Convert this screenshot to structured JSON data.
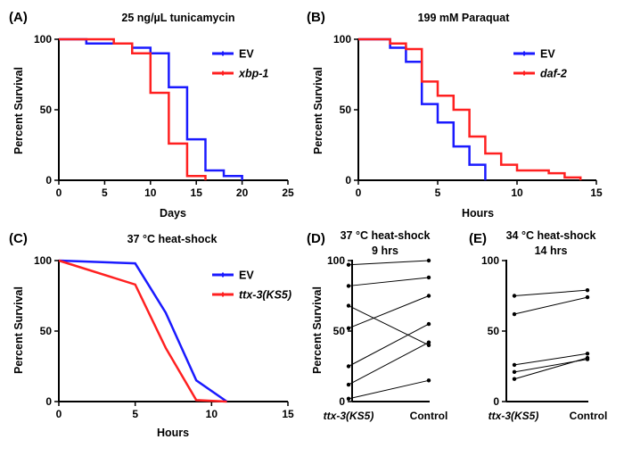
{
  "chart_data": [
    {
      "panel": "(A)",
      "type": "line",
      "title": "25 ng/µL tunicamycin",
      "xlabel": "Days",
      "ylabel": "Percent Survival",
      "xlim": [
        0,
        25
      ],
      "ylim": [
        0,
        100
      ],
      "xticks": [
        0,
        5,
        10,
        15,
        20,
        25
      ],
      "yticks": [
        0,
        50,
        100
      ],
      "step": true,
      "legend": "right",
      "series": [
        {
          "name": "EV",
          "italic": false,
          "color": "#1a1aff",
          "x": [
            0,
            3,
            8,
            10,
            12,
            14,
            16,
            18,
            20
          ],
          "y": [
            100,
            97,
            94,
            90,
            66,
            29,
            7,
            3,
            0
          ]
        },
        {
          "name": "xbp-1",
          "italic": true,
          "color": "#ff2020",
          "x": [
            0,
            6,
            8,
            10,
            12,
            14,
            16
          ],
          "y": [
            100,
            97,
            90,
            62,
            26,
            3,
            0
          ]
        }
      ]
    },
    {
      "panel": "(B)",
      "type": "line",
      "title": "199 mM Paraquat",
      "xlabel": "Hours",
      "ylabel": "Percent Survival",
      "xlim": [
        0,
        15
      ],
      "ylim": [
        0,
        100
      ],
      "xticks": [
        0,
        5,
        10,
        15
      ],
      "yticks": [
        0,
        50,
        100
      ],
      "step": true,
      "legend": "right",
      "series": [
        {
          "name": "EV",
          "italic": false,
          "color": "#1a1aff",
          "x": [
            0,
            2,
            3,
            4,
            5,
            6,
            7,
            8
          ],
          "y": [
            100,
            94,
            84,
            54,
            41,
            24,
            11,
            0
          ]
        },
        {
          "name": "daf-2",
          "italic": true,
          "color": "#ff2020",
          "x": [
            0,
            2,
            3,
            4,
            5,
            6,
            7,
            8,
            9,
            10,
            12,
            13,
            14
          ],
          "y": [
            100,
            97,
            93,
            70,
            60,
            50,
            31,
            19,
            11,
            7,
            5,
            2,
            0
          ]
        }
      ]
    },
    {
      "panel": "(C)",
      "type": "line",
      "title": "37 °C heat-shock",
      "xlabel": "Hours",
      "ylabel": "Percent Survival",
      "xlim": [
        0,
        15
      ],
      "ylim": [
        0,
        100
      ],
      "xticks": [
        0,
        5,
        10,
        15
      ],
      "yticks": [
        0,
        50,
        100
      ],
      "step": false,
      "legend": "right",
      "series": [
        {
          "name": "EV",
          "italic": false,
          "color": "#1a1aff",
          "x": [
            0,
            5,
            7,
            9,
            11
          ],
          "y": [
            100,
            98,
            63,
            15,
            0
          ]
        },
        {
          "name": "ttx-3(KS5)",
          "italic": true,
          "color": "#ff2020",
          "x": [
            0,
            5,
            7,
            9,
            11
          ],
          "y": [
            100,
            83,
            38,
            1,
            0
          ]
        }
      ]
    },
    {
      "panel": "(D)",
      "type": "scatter",
      "title": "37 °C heat-shock",
      "subtitle": "9 hrs",
      "ylabel": "Percent Survival",
      "categories": [
        "ttx-3(KS5)",
        "Control"
      ],
      "ylim": [
        0,
        100
      ],
      "yticks": [
        0,
        50,
        100
      ],
      "pairs": [
        [
          97,
          100
        ],
        [
          82,
          88
        ],
        [
          68,
          40
        ],
        [
          52,
          75
        ],
        [
          25,
          55
        ],
        [
          12,
          42
        ],
        [
          2,
          15
        ]
      ]
    },
    {
      "panel": "(E)",
      "type": "scatter",
      "title": "34 °C heat-shock",
      "subtitle": "14 hrs",
      "ylabel": "",
      "categories": [
        "ttx-3(KS5)",
        "Control"
      ],
      "ylim": [
        0,
        100
      ],
      "yticks": [
        0,
        50,
        100
      ],
      "pairs": [
        [
          75,
          79
        ],
        [
          62,
          74
        ],
        [
          26,
          34
        ],
        [
          21,
          30
        ],
        [
          16,
          31
        ]
      ]
    }
  ]
}
